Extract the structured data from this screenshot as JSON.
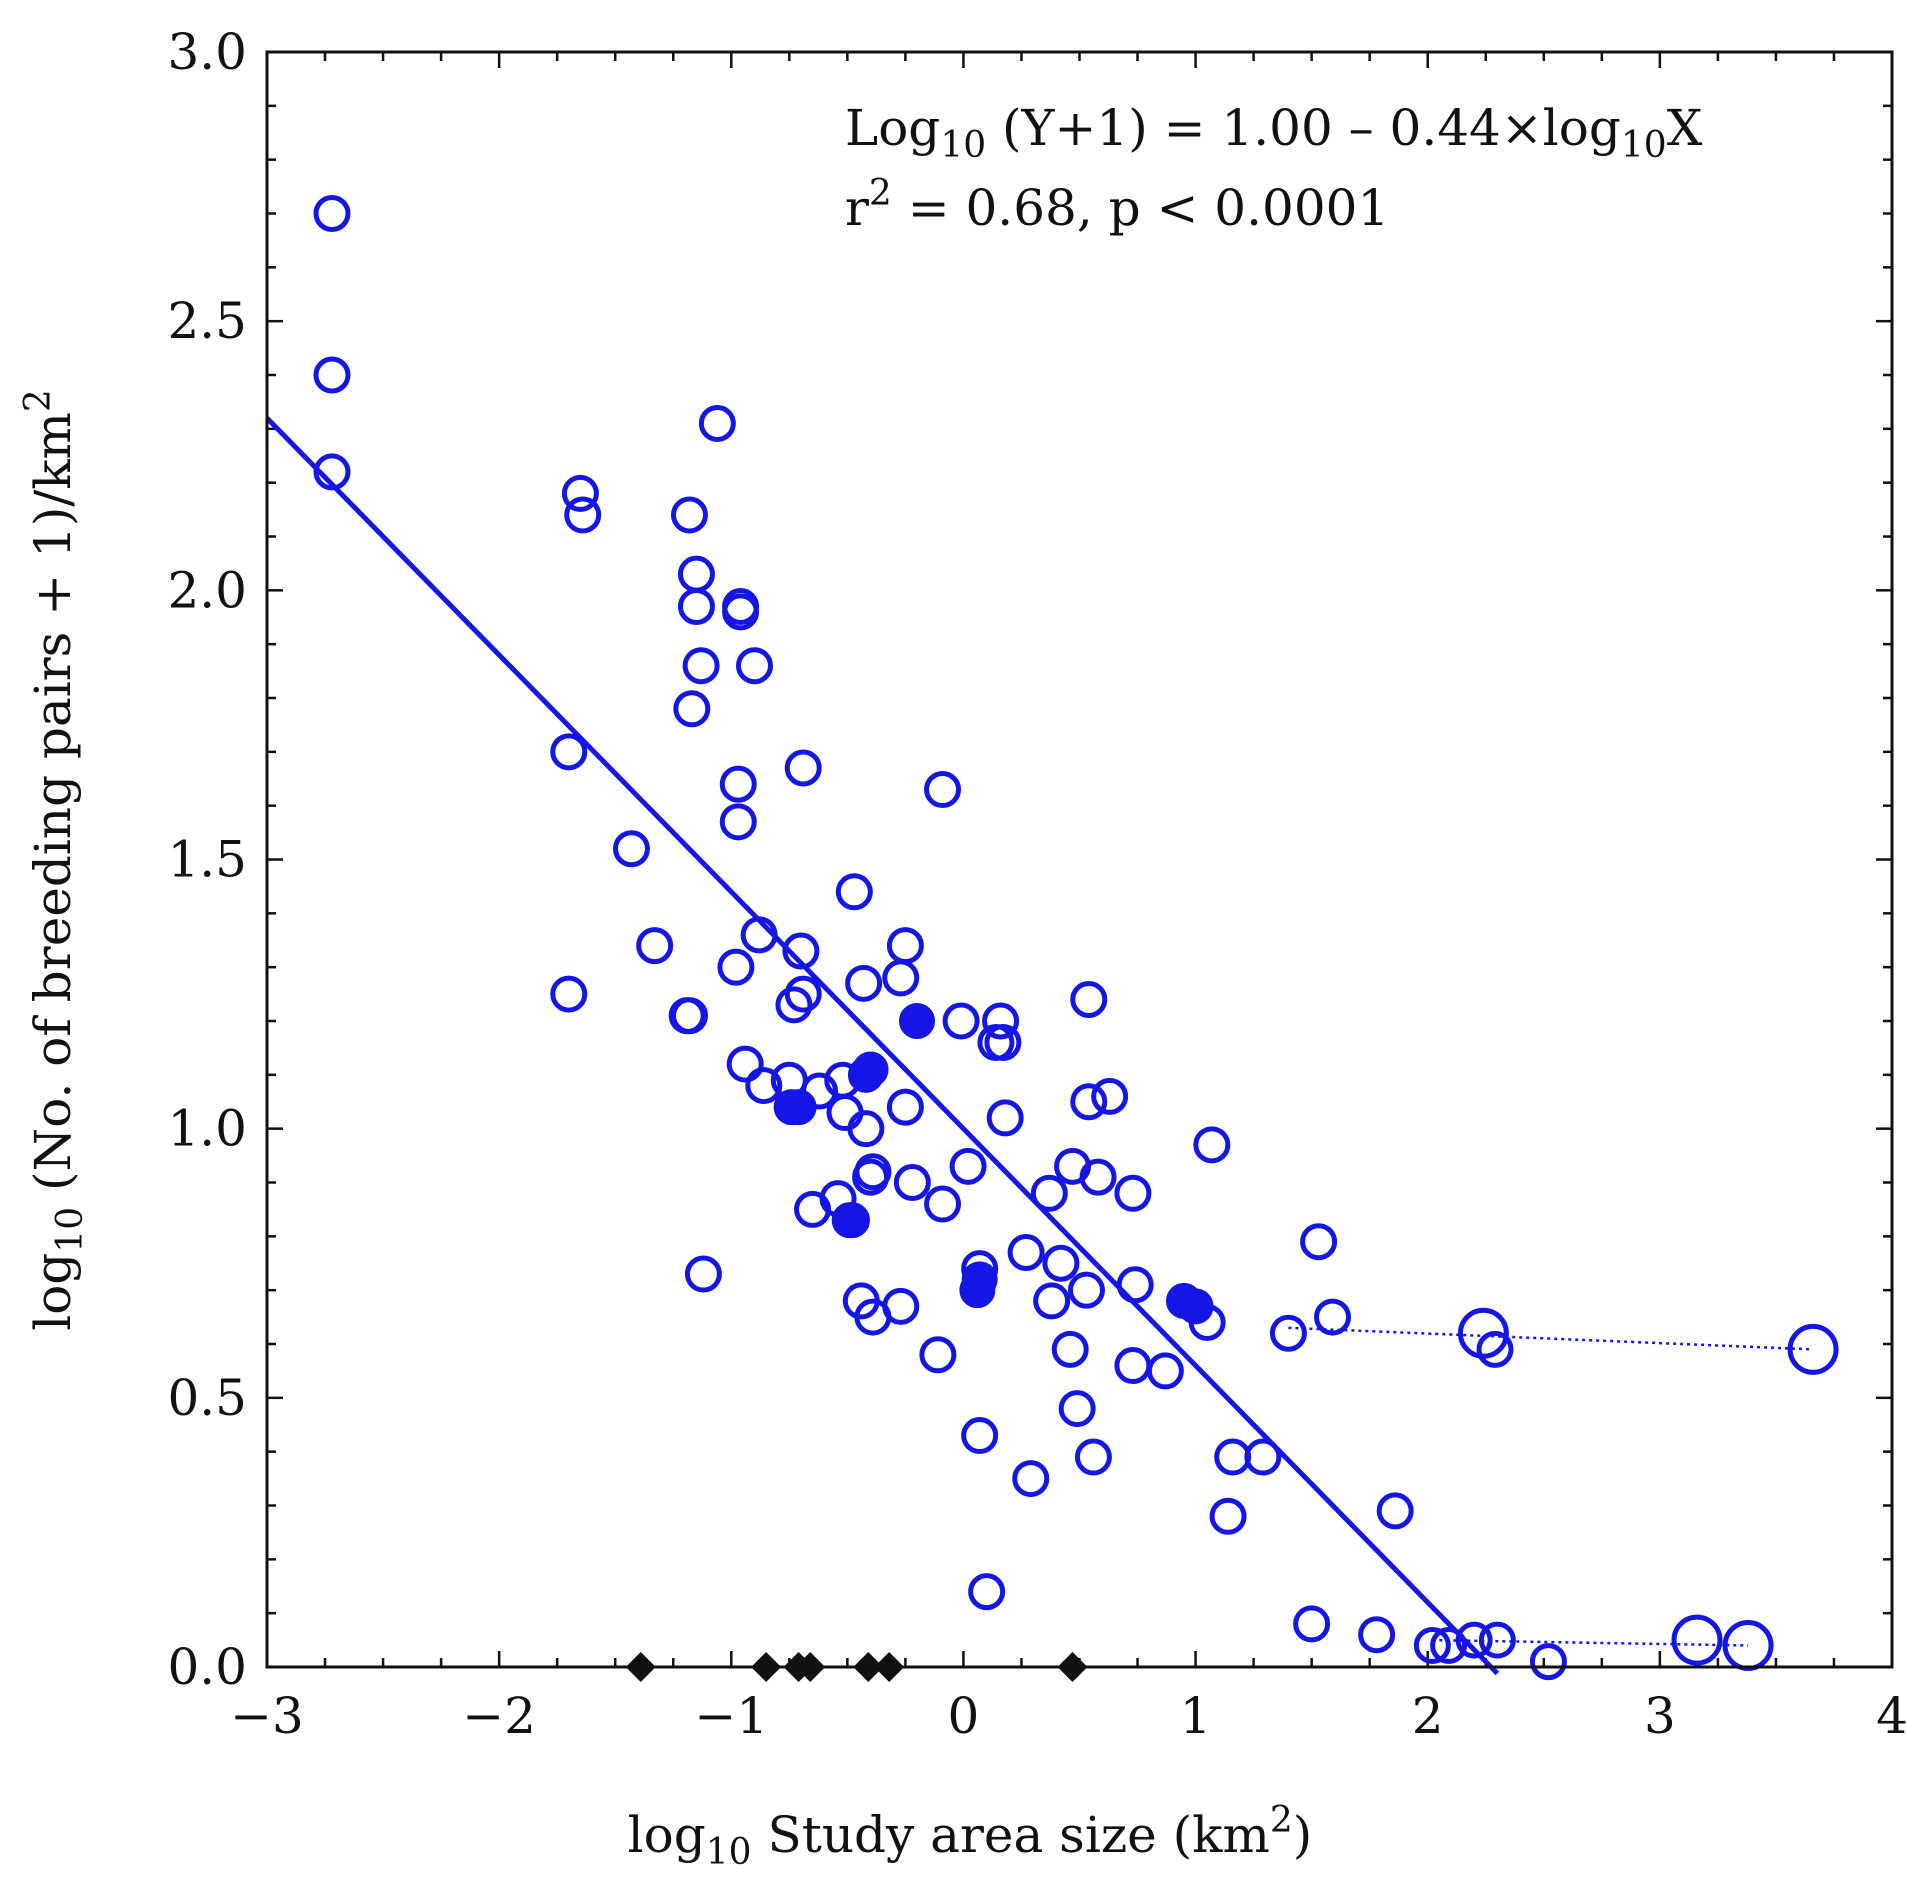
{
  "chart_data": {
    "type": "scatter",
    "xlabel": {
      "pre": "log",
      "sub": "10",
      "main": " Study area size (km",
      "sup": "2",
      "post": ")"
    },
    "ylabel": {
      "pre": "log",
      "sub": "10",
      "main": " (No. of breeding pairs + 1)/km",
      "sup": "2",
      "post": ""
    },
    "xlim": [
      -3,
      4
    ],
    "ylim": [
      0,
      3
    ],
    "x_ticks": [
      "−3",
      "−2",
      "−1",
      "0",
      "1",
      "2",
      "3",
      "4"
    ],
    "x_tick_values": [
      -3,
      -2,
      -1,
      0,
      1,
      2,
      3,
      4
    ],
    "y_ticks": [
      "0.0",
      "0.5",
      "1.0",
      "1.5",
      "2.0",
      "2.5",
      "3.0"
    ],
    "y_tick_values": [
      0,
      0.5,
      1.0,
      1.5,
      2.0,
      2.5,
      3.0
    ],
    "annotation": {
      "line1": {
        "a": "Log",
        "sub1": "10",
        "b": " (Y+1) = 1.00 – 0.44×log",
        "sub2": "10",
        "c": "X"
      },
      "line2": {
        "a": "r",
        "sup": "2",
        "b": " = 0.68, p < 0.0001"
      }
    },
    "regression": {
      "intercept": 1.0,
      "slope": -0.44,
      "x_range": [
        -3,
        2.3
      ]
    },
    "colors": {
      "series": "#1515e6",
      "filled": "#1515e6",
      "zero": "#111111",
      "axis": "#111111"
    },
    "open_points": [
      [
        -2.72,
        2.7
      ],
      [
        -2.72,
        2.4
      ],
      [
        -2.72,
        2.22
      ],
      [
        -1.65,
        2.18
      ],
      [
        -1.64,
        2.14
      ],
      [
        -1.18,
        2.14
      ],
      [
        -1.15,
        2.03
      ],
      [
        -1.15,
        1.97
      ],
      [
        -1.13,
        1.86
      ],
      [
        -1.17,
        1.78
      ],
      [
        -1.06,
        2.31
      ],
      [
        -0.96,
        1.97
      ],
      [
        -0.96,
        1.96
      ],
      [
        -0.9,
        1.86
      ],
      [
        -0.97,
        1.64
      ],
      [
        -0.97,
        1.57
      ],
      [
        -0.69,
        1.67
      ],
      [
        -0.09,
        1.63
      ],
      [
        -1.7,
        1.7
      ],
      [
        -1.43,
        1.52
      ],
      [
        -1.33,
        1.34
      ],
      [
        -1.7,
        1.25
      ],
      [
        -1.19,
        1.21
      ],
      [
        -1.18,
        1.21
      ],
      [
        -0.88,
        1.36
      ],
      [
        -0.98,
        1.3
      ],
      [
        -0.7,
        1.33
      ],
      [
        -0.73,
        1.23
      ],
      [
        -0.69,
        1.25
      ],
      [
        -0.47,
        1.44
      ],
      [
        -0.43,
        1.27
      ],
      [
        -0.25,
        1.34
      ],
      [
        -0.27,
        1.28
      ],
      [
        -0.01,
        1.2
      ],
      [
        0.16,
        1.2
      ],
      [
        0.14,
        1.16
      ],
      [
        0.17,
        1.16
      ],
      [
        0.54,
        1.24
      ],
      [
        0.54,
        1.05
      ],
      [
        0.63,
        1.06
      ],
      [
        0.18,
        1.02
      ],
      [
        -0.94,
        1.12
      ],
      [
        -0.86,
        1.08
      ],
      [
        -0.75,
        1.09
      ],
      [
        -0.62,
        1.07
      ],
      [
        -0.52,
        1.09
      ],
      [
        -0.51,
        1.03
      ],
      [
        -0.42,
        1.0
      ],
      [
        -0.39,
        0.92
      ],
      [
        -0.4,
        0.91
      ],
      [
        -0.25,
        1.04
      ],
      [
        -0.22,
        0.9
      ],
      [
        -0.09,
        0.86
      ],
      [
        0.02,
        0.93
      ],
      [
        -0.65,
        0.85
      ],
      [
        -0.54,
        0.87
      ],
      [
        -1.12,
        0.73
      ],
      [
        -0.44,
        0.68
      ],
      [
        -0.39,
        0.65
      ],
      [
        -0.27,
        0.67
      ],
      [
        -0.11,
        0.58
      ],
      [
        0.07,
        0.74
      ],
      [
        0.27,
        0.77
      ],
      [
        0.37,
        0.88
      ],
      [
        0.47,
        0.93
      ],
      [
        0.58,
        0.91
      ],
      [
        0.73,
        0.88
      ],
      [
        0.38,
        0.68
      ],
      [
        0.42,
        0.75
      ],
      [
        0.53,
        0.7
      ],
      [
        0.74,
        0.71
      ],
      [
        0.73,
        0.56
      ],
      [
        0.87,
        0.55
      ],
      [
        1.05,
        0.64
      ],
      [
        1.07,
        0.97
      ],
      [
        0.46,
        0.59
      ],
      [
        0.49,
        0.48
      ],
      [
        0.56,
        0.39
      ],
      [
        0.07,
        0.43
      ],
      [
        0.29,
        0.35
      ],
      [
        0.1,
        0.14
      ],
      [
        1.16,
        0.39
      ],
      [
        1.29,
        0.39
      ],
      [
        1.14,
        0.28
      ],
      [
        1.4,
        0.62
      ],
      [
        1.53,
        0.79
      ],
      [
        1.59,
        0.65
      ],
      [
        1.86,
        0.29
      ],
      [
        1.5,
        0.08
      ],
      [
        1.78,
        0.06
      ],
      [
        2.02,
        0.04
      ],
      [
        2.09,
        0.04
      ],
      [
        2.2,
        0.05
      ],
      [
        2.3,
        0.05
      ],
      [
        2.52,
        0.01
      ],
      [
        2.29,
        0.59
      ]
    ],
    "large_points": [
      [
        2.24,
        0.62
      ],
      [
        3.66,
        0.59
      ],
      [
        3.16,
        0.05
      ],
      [
        3.38,
        0.04
      ]
    ],
    "filled_points": [
      [
        -0.74,
        1.04
      ],
      [
        -0.71,
        1.04
      ],
      [
        -0.42,
        1.1
      ],
      [
        -0.4,
        1.11
      ],
      [
        -0.2,
        1.2
      ],
      [
        -0.49,
        0.83
      ],
      [
        -0.48,
        0.83
      ],
      [
        0.07,
        0.72
      ],
      [
        0.06,
        0.7
      ],
      [
        0.95,
        0.68
      ],
      [
        1.0,
        0.67
      ]
    ],
    "zero_points": [
      -1.39,
      -0.85,
      -0.71,
      -0.66,
      -0.41,
      -0.32,
      0.47
    ],
    "dotted_lines": [
      {
        "x": [
          1.4,
          3.66
        ],
        "y": 0.63,
        "y2": 0.59
      },
      {
        "x": [
          2.02,
          3.38
        ],
        "y": 0.05,
        "y2": 0.04
      }
    ]
  }
}
